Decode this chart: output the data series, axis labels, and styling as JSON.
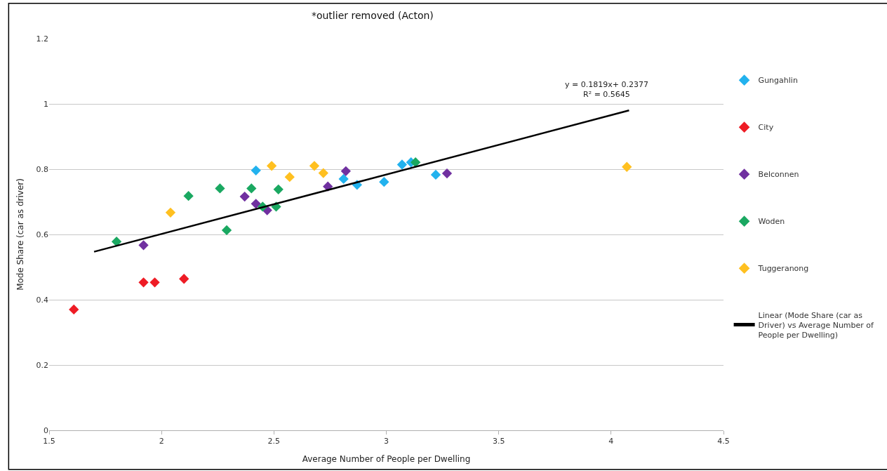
{
  "chart_data": {
    "type": "scatter",
    "title": "*outlier removed (Acton)",
    "xlabel": "Average Number of People per Dwelling",
    "ylabel": "Mode Share (car as driver)",
    "xlim": [
      1.5,
      4.5
    ],
    "xticks": [
      1.5,
      2,
      2.5,
      3,
      3.5,
      4,
      4.5
    ],
    "ylim": [
      0,
      1.2
    ],
    "yticks": [
      0,
      0.2,
      0.4,
      0.6,
      0.8,
      1,
      1.2
    ],
    "grid": "y",
    "legend": "right",
    "marker": "diamond",
    "annotations": [
      "y = 0.1819x+ 0.2377\nR² = 0.5645"
    ],
    "series": [
      {
        "name": "Gungahlin",
        "color": "#22b2ee",
        "x": [
          2.42,
          2.81,
          2.87,
          2.99,
          3.07,
          3.11,
          3.22
        ],
        "values": [
          0.796,
          0.77,
          0.752,
          0.761,
          0.814,
          0.821,
          0.783
        ]
      },
      {
        "name": "City",
        "color": "#ee1c25",
        "x": [
          1.61,
          1.92,
          1.97,
          2.1
        ],
        "values": [
          0.37,
          0.453,
          0.453,
          0.464
        ]
      },
      {
        "name": "Belconnen",
        "color": "#7030a0",
        "x": [
          1.92,
          2.37,
          2.42,
          2.47,
          2.74,
          2.82,
          3.27
        ],
        "values": [
          0.567,
          0.716,
          0.694,
          0.674,
          0.747,
          0.794,
          0.787
        ]
      },
      {
        "name": "Woden",
        "color": "#1aa861",
        "x": [
          1.8,
          2.12,
          2.26,
          2.29,
          2.4,
          2.45,
          2.51,
          2.52,
          3.13
        ],
        "values": [
          0.578,
          0.718,
          0.741,
          0.613,
          0.741,
          0.685,
          0.685,
          0.738,
          0.821
        ]
      },
      {
        "name": "Tuggeranong",
        "color": "#ffc020",
        "x": [
          2.04,
          2.49,
          2.57,
          2.68,
          2.72,
          4.07
        ],
        "values": [
          0.667,
          0.81,
          0.776,
          0.81,
          0.788,
          0.807
        ]
      },
      {
        "name": "Linear (Mode Share (car as Driver) vs Average Number of People per Dwelling)",
        "type": "line",
        "marker": "none",
        "color": "#000000",
        "x": [
          1.7,
          4.08
        ],
        "values": [
          0.547,
          0.98
        ]
      }
    ]
  }
}
